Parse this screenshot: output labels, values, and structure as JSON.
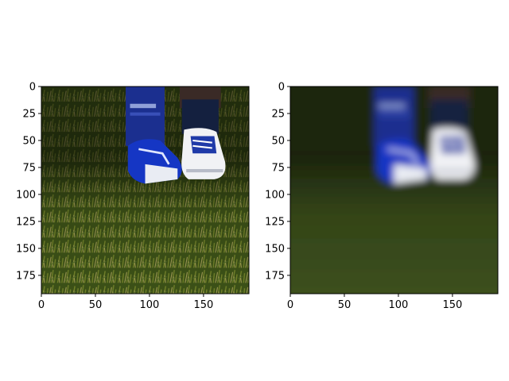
{
  "chart_data": [
    {
      "type": "image",
      "title": "",
      "xlabel": "",
      "ylabel": "",
      "xlim": [
        0,
        192
      ],
      "ylim": [
        192,
        0
      ],
      "xticks": [
        0,
        50,
        100,
        150
      ],
      "yticks": [
        0,
        25,
        50,
        75,
        100,
        125,
        150,
        175
      ],
      "content": "photo-sharp",
      "grid": false
    },
    {
      "type": "image",
      "title": "",
      "xlabel": "",
      "ylabel": "",
      "xlim": [
        0,
        192
      ],
      "ylim": [
        192,
        0
      ],
      "xticks": [
        0,
        50,
        100,
        150
      ],
      "yticks": [
        0,
        25,
        50,
        75,
        100,
        125,
        150,
        175
      ],
      "content": "photo-blurred",
      "grid": false
    }
  ]
}
